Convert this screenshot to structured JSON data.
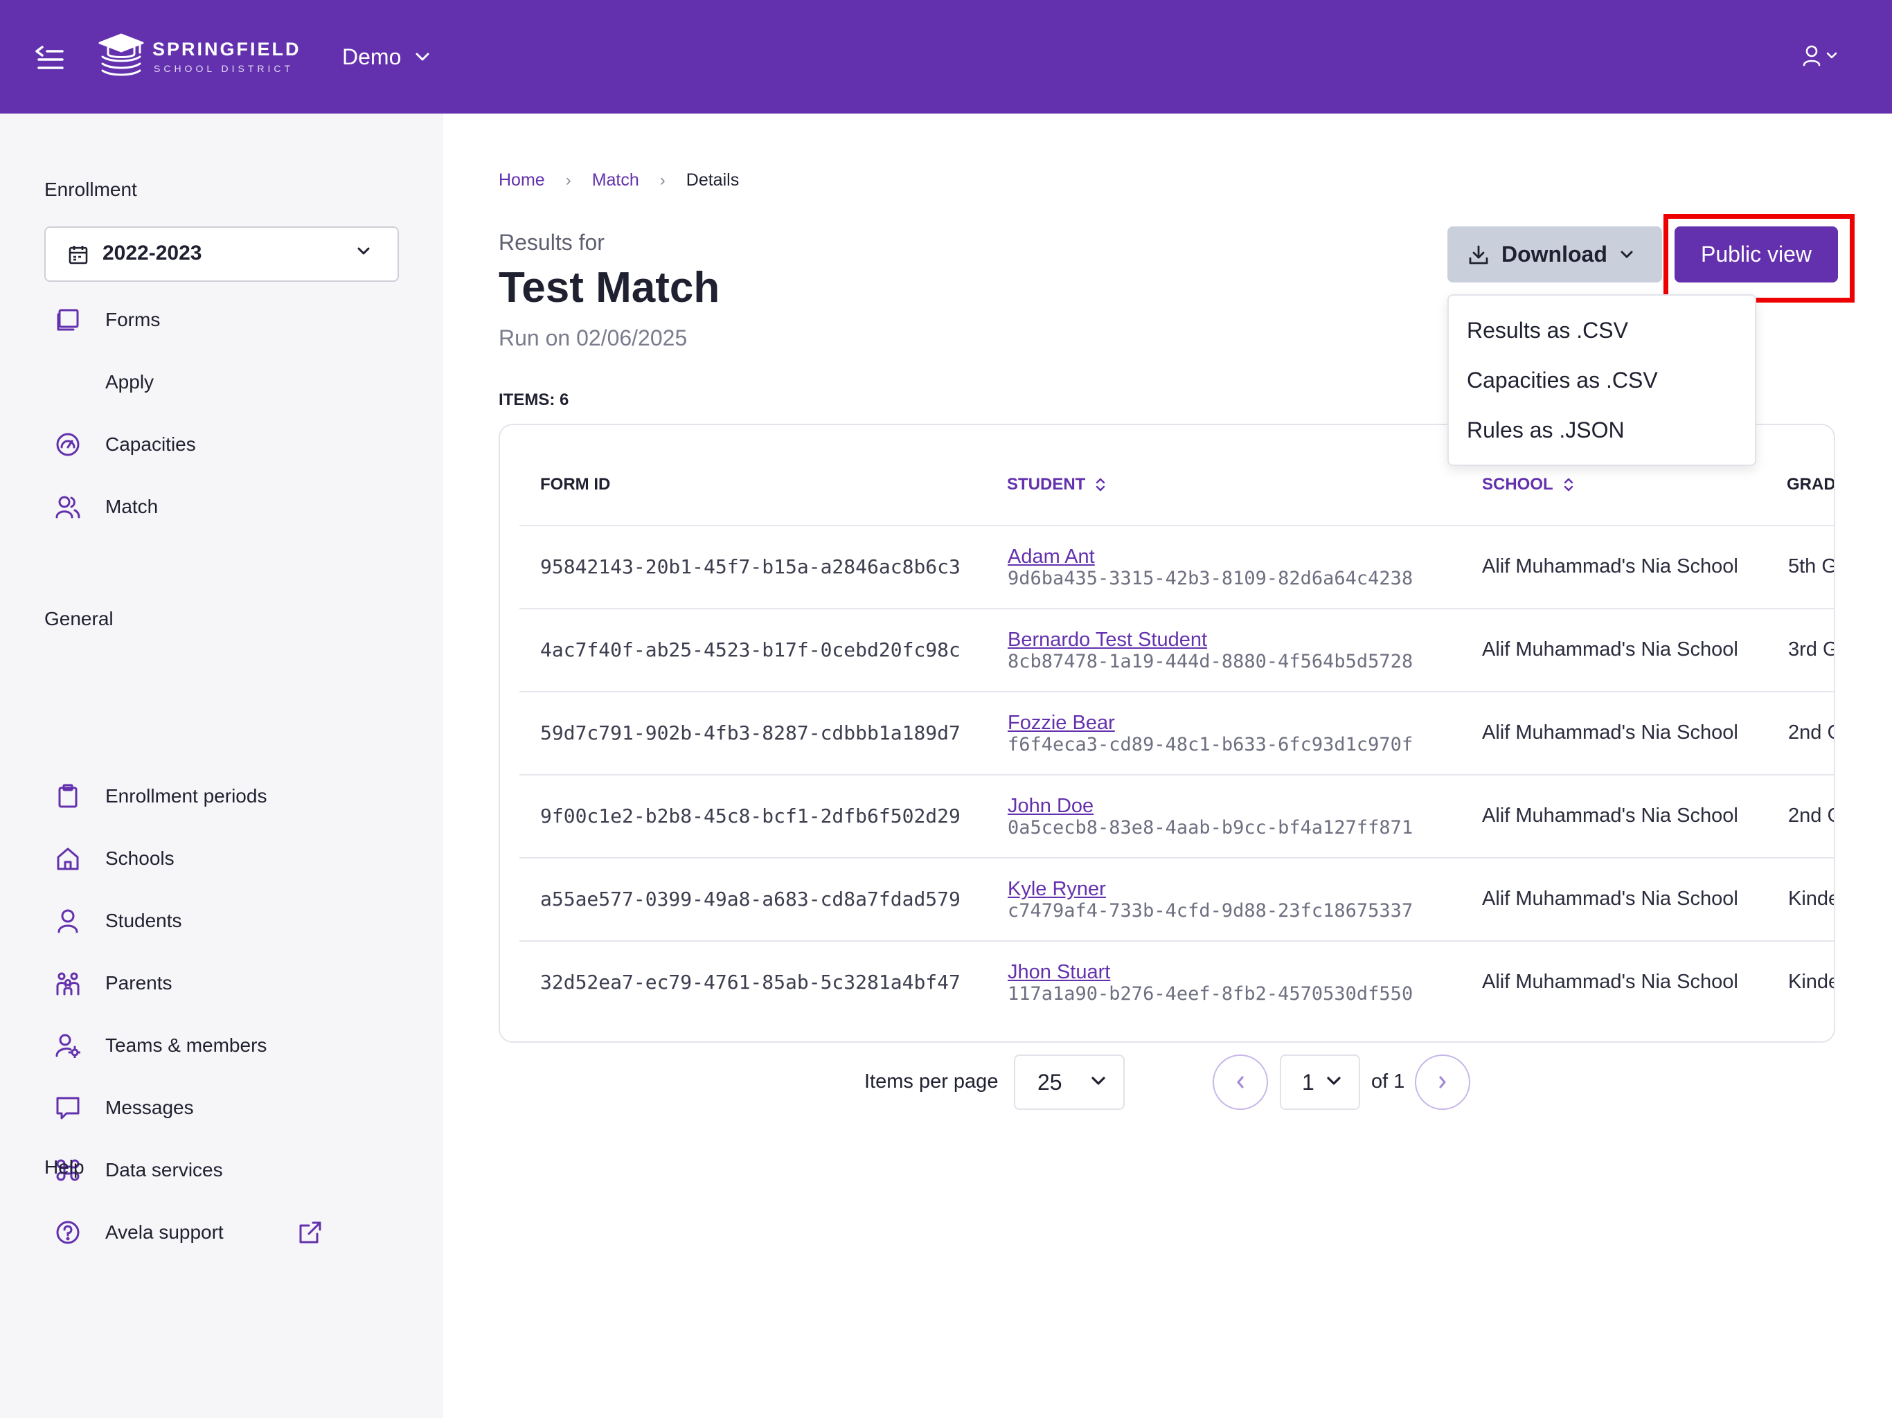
{
  "header": {
    "logo_title": "SPRINGFIELD",
    "logo_subtitle": "SCHOOL DISTRICT",
    "org_name": "Demo"
  },
  "sidebar": {
    "enrollment_heading": "Enrollment",
    "year_value": "2022-2023",
    "enrollment_items": [
      {
        "label": "Forms",
        "icon": "forms-icon"
      },
      {
        "label": "Apply"
      },
      {
        "label": "Capacities",
        "icon": "gauge-icon"
      },
      {
        "label": "Match",
        "icon": "users-icon"
      }
    ],
    "general_heading": "General",
    "general_items": [
      {
        "label": "Enrollment periods",
        "icon": "clipboard-icon"
      },
      {
        "label": "Schools",
        "icon": "home-icon"
      },
      {
        "label": "Students",
        "icon": "person-icon"
      },
      {
        "label": "Parents",
        "icon": "family-icon"
      },
      {
        "label": "Teams & members",
        "icon": "user-gear-icon"
      },
      {
        "label": "Messages",
        "icon": "message-icon"
      },
      {
        "label": "Data services",
        "icon": "command-icon"
      }
    ],
    "help_heading": "Help",
    "help_items": [
      {
        "label": "Avela support",
        "icon": "help-circle-icon"
      }
    ]
  },
  "breadcrumb": [
    {
      "label": "Home"
    },
    {
      "label": "Match"
    },
    {
      "label": "Details"
    }
  ],
  "main": {
    "results_for": "Results for",
    "title": "Test Match",
    "run_on": "Run on 02/06/2025",
    "items_count": "ITEMS: 6",
    "download_label": "Download",
    "public_view_label": "Public view",
    "download_menu": [
      "Results as .CSV",
      "Capacities as .CSV",
      "Rules as .JSON"
    ]
  },
  "table": {
    "columns": [
      "FORM ID",
      "STUDENT",
      "SCHOOL",
      "GRAD"
    ],
    "rows": [
      {
        "form_id": "95842143-20b1-45f7-b15a-a2846ac8b6c3",
        "student_name": "Adam Ant",
        "student_id": "9d6ba435-3315-42b3-8109-82d6a64c4238",
        "school": "Alif Muhammad's Nia School",
        "grade": "5th G"
      },
      {
        "form_id": "4ac7f40f-ab25-4523-b17f-0cebd20fc98c",
        "student_name": "Bernardo Test Student",
        "student_id": "8cb87478-1a19-444d-8880-4f564b5d5728",
        "school": "Alif Muhammad's Nia School",
        "grade": "3rd G"
      },
      {
        "form_id": "59d7c791-902b-4fb3-8287-cdbbb1a189d7",
        "student_name": "Fozzie Bear",
        "student_id": "f6f4eca3-cd89-48c1-b633-6fc93d1c970f",
        "school": "Alif Muhammad's Nia School",
        "grade": "2nd G"
      },
      {
        "form_id": "9f00c1e2-b2b8-45c8-bcf1-2dfb6f502d29",
        "student_name": "John Doe",
        "student_id": "0a5cecb8-83e8-4aab-b9cc-bf4a127ff871",
        "school": "Alif Muhammad's Nia School",
        "grade": "2nd G"
      },
      {
        "form_id": "a55ae577-0399-49a8-a683-cd8a7fdad579",
        "student_name": "Kyle Ryner",
        "student_id": "c7479af4-733b-4cfd-9d88-23fc18675337",
        "school": "Alif Muhammad's Nia School",
        "grade": "Kinde"
      },
      {
        "form_id": "32d52ea7-ec79-4761-85ab-5c3281a4bf47",
        "student_name": "Jhon Stuart",
        "student_id": "117a1a90-b276-4eef-8fb2-4570530df550",
        "school": "Alif Muhammad's Nia School",
        "grade": "Kinde"
      }
    ]
  },
  "pagination": {
    "items_per_page_label": "Items per page",
    "items_per_page": "25",
    "page": "1",
    "of_total": "of 1"
  },
  "colors": {
    "brand_purple": "#6331ad",
    "highlight_red": "#ef0000",
    "download_gray": "#c9d0dc"
  }
}
